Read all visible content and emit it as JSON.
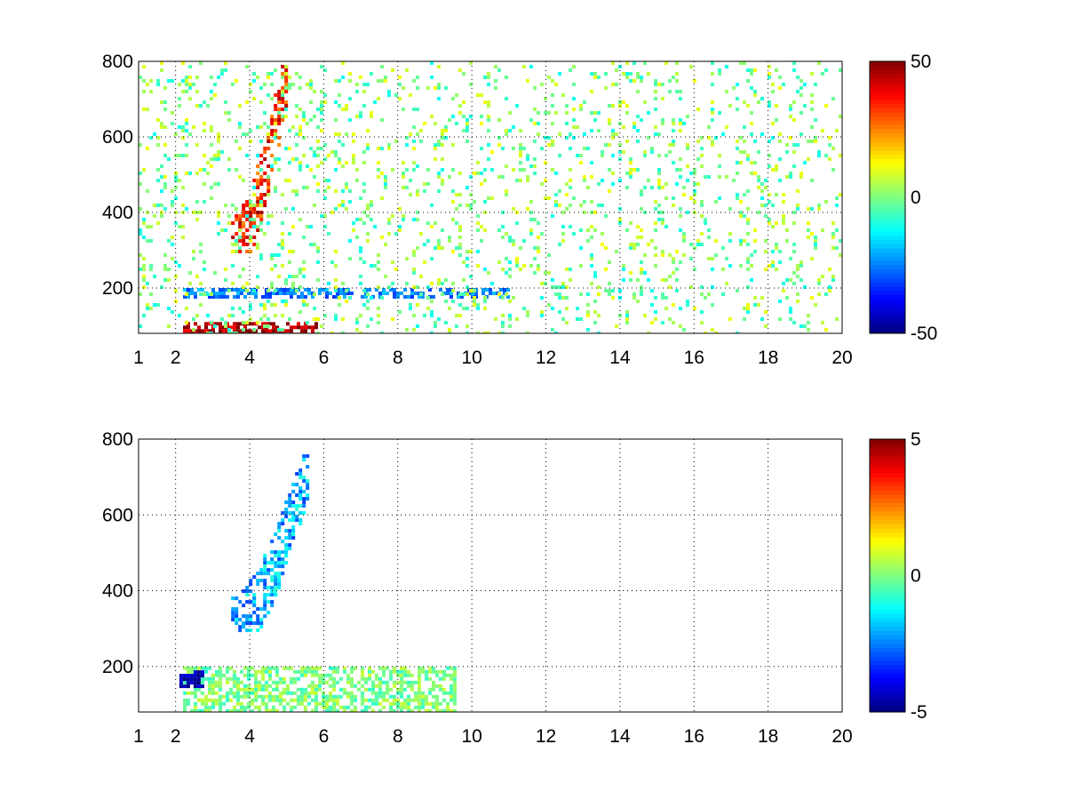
{
  "chart_data": [
    {
      "type": "heatmap",
      "title": "",
      "xlabel": "",
      "ylabel": "",
      "xlim": [
        1,
        20
      ],
      "ylim": [
        80,
        800
      ],
      "x_ticks": [
        1,
        2,
        4,
        6,
        8,
        10,
        12,
        14,
        16,
        18,
        20
      ],
      "y_ticks": [
        200,
        400,
        600,
        800
      ],
      "grid": true,
      "colormap": "jet",
      "colorbar": {
        "clim": [
          -50,
          50
        ],
        "ticks": [
          -50,
          0,
          50
        ]
      },
      "features": [
        {
          "name": "curved ridge",
          "x_range": [
            3.5,
            5
          ],
          "y_range": [
            300,
            800
          ],
          "value": 35
        },
        {
          "name": "low-frequency band",
          "x_range": [
            2.2,
            5.8
          ],
          "y_range": [
            80,
            110
          ],
          "value": 45
        },
        {
          "name": "horizontal band",
          "x_range": [
            2.2,
            11
          ],
          "y_range": [
            180,
            200
          ],
          "value": -25
        },
        {
          "name": "scattered background",
          "x_range": [
            1,
            20
          ],
          "y_range": [
            80,
            800
          ],
          "value": 0
        }
      ]
    },
    {
      "type": "heatmap",
      "title": "",
      "xlabel": "",
      "ylabel": "",
      "xlim": [
        1,
        20
      ],
      "ylim": [
        80,
        800
      ],
      "x_ticks": [
        1,
        2,
        4,
        6,
        8,
        10,
        12,
        14,
        16,
        18,
        20
      ],
      "y_ticks": [
        200,
        400,
        600,
        800
      ],
      "grid": true,
      "colormap": "jet",
      "colorbar": {
        "clim": [
          -5,
          5
        ],
        "ticks": [
          -5,
          0,
          5
        ]
      },
      "features": [
        {
          "name": "curved ridge",
          "x_range": [
            3.5,
            5.6
          ],
          "y_range": [
            300,
            760
          ],
          "value": -2
        },
        {
          "name": "low-frequency band",
          "x_range": [
            2.2,
            9.5
          ],
          "y_range": [
            80,
            200
          ],
          "value": 0
        },
        {
          "name": "small patch",
          "x_range": [
            2.1,
            2.7
          ],
          "y_range": [
            150,
            190
          ],
          "value": -4.5
        }
      ]
    }
  ]
}
